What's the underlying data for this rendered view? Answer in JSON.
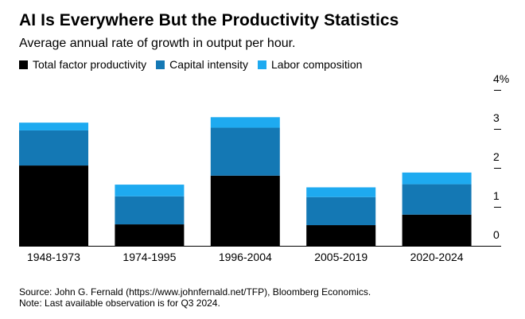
{
  "chart_data": {
    "type": "bar",
    "stacked": true,
    "title": "AI Is Everywhere But the Productivity Statistics",
    "subtitle": "Average annual rate of growth in output per hour.",
    "categories": [
      "1948-1973",
      "1974-1995",
      "1996-2004",
      "2005-2019",
      "2020-2024"
    ],
    "series": [
      {
        "name": "Total factor productivity",
        "color": "#000000",
        "values": [
          2.06,
          0.55,
          1.8,
          0.53,
          0.8
        ]
      },
      {
        "name": "Capital intensity",
        "color": "#1478b4",
        "values": [
          0.9,
          0.72,
          1.23,
          0.72,
          0.78
        ]
      },
      {
        "name": "Labor composition",
        "color": "#1eaaf0",
        "values": [
          0.2,
          0.3,
          0.27,
          0.25,
          0.3
        ]
      }
    ],
    "y_ticks": [
      {
        "value": 0,
        "label": "0"
      },
      {
        "value": 1,
        "label": "1"
      },
      {
        "value": 2,
        "label": "2"
      },
      {
        "value": 3,
        "label": "3"
      },
      {
        "value": 4,
        "label": "4%"
      }
    ],
    "ylim": [
      0,
      4
    ],
    "y_axis_position": "right",
    "grid": false
  },
  "footer": {
    "source": "Source: John G. Fernald (https://www.johnfernald.net/TFP), Bloomberg Economics.",
    "note": "Note: Last available observation is for Q3 2024."
  }
}
